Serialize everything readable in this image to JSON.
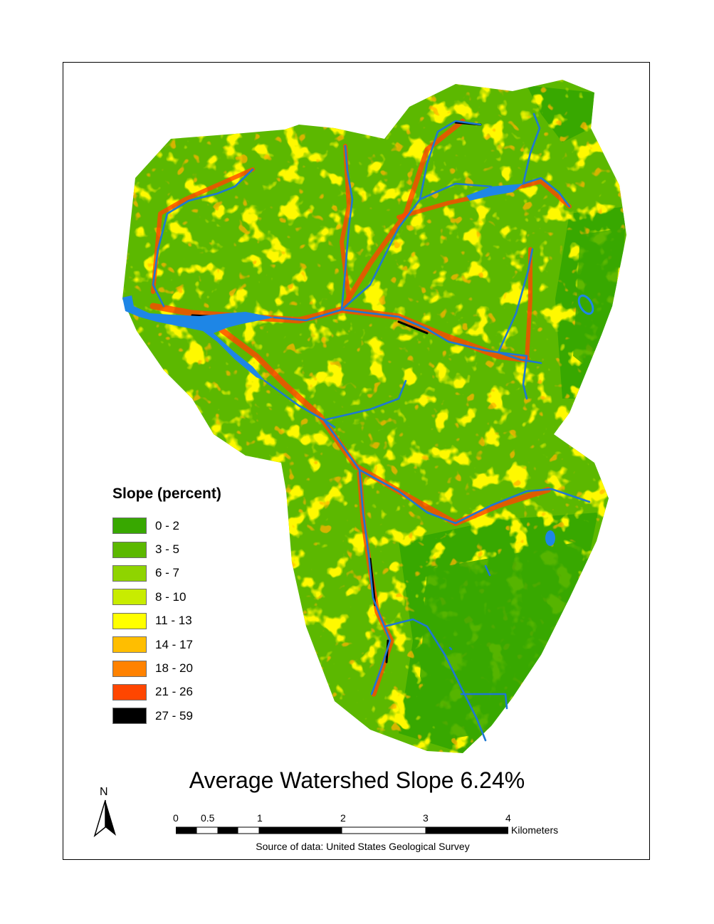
{
  "map": {
    "title": "Average Watershed Slope 6.24%",
    "source": "Source of data: United States Geological Survey",
    "colors": {
      "water": "#1e86e6",
      "stream": "#1e78d2",
      "frame": "#000000"
    }
  },
  "legend": {
    "title": "Slope (percent)",
    "classes": [
      {
        "label": "0 - 2",
        "color": "#38a800"
      },
      {
        "label": "3 - 5",
        "color": "#5cb800"
      },
      {
        "label": "6 - 7",
        "color": "#8fd400"
      },
      {
        "label": "8 - 10",
        "color": "#c8ec00"
      },
      {
        "label": "11 - 13",
        "color": "#ffff00"
      },
      {
        "label": "14 - 17",
        "color": "#ffbe00"
      },
      {
        "label": "18 - 20",
        "color": "#ff8200"
      },
      {
        "label": "21 - 26",
        "color": "#ff4600"
      },
      {
        "label": "27 - 59",
        "color": "#000000"
      }
    ]
  },
  "north_arrow": {
    "letter": "N",
    "icon": "north-arrow-icon"
  },
  "scale_bar": {
    "ticks": [
      "0",
      "0.5",
      "1",
      "2",
      "3",
      "4"
    ],
    "unit": "Kilometers"
  }
}
